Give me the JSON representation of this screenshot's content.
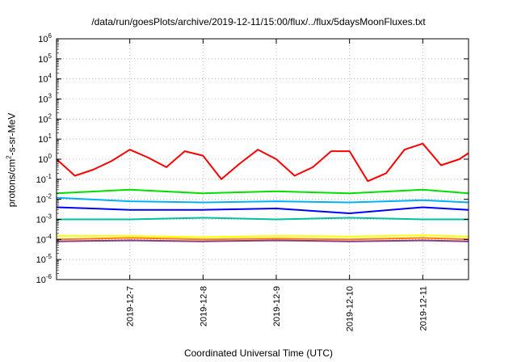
{
  "title": "/data/run/goesPlots/archive/2019-12-11/15:00/flux/../flux/5daysMoonFluxes.txt",
  "xlabel": "Coordinated Universal Time (UTC)",
  "ylabel": {
    "prefix": "protons/cm",
    "sup": "2",
    "suffix": "-s-sr-MeV"
  },
  "chart_data": {
    "type": "line",
    "title": "/data/run/goesPlots/archive/2019-12-11/15:00/flux/../flux/5daysMoonFluxes.txt",
    "xlabel": "Coordinated Universal Time (UTC)",
    "ylabel": "protons/cm2-s-sr-MeV",
    "yscale": "log",
    "ylim": [
      1e-06,
      1000000.0
    ],
    "xlim": [
      "2019-12-06T00:00",
      "2019-12-11T15:00"
    ],
    "grid": true,
    "x_ticks": [
      "2019-12-7",
      "2019-12-8",
      "2019-12-9",
      "2019-12-10",
      "2019-12-11"
    ],
    "y_tick_exponents": [
      -6,
      -5,
      -4,
      -3,
      -2,
      -1,
      0,
      1,
      2,
      3,
      4,
      5,
      6
    ],
    "series": [
      {
        "color": "#ff0000",
        "x": [
          "2019-12-06T00:00",
          "2019-12-06T06:00",
          "2019-12-06T12:00",
          "2019-12-06T18:00",
          "2019-12-07T00:00",
          "2019-12-07T06:00",
          "2019-12-07T12:00",
          "2019-12-07T18:00",
          "2019-12-08T00:00",
          "2019-12-08T06:00",
          "2019-12-08T12:00",
          "2019-12-08T18:00",
          "2019-12-09T00:00",
          "2019-12-09T06:00",
          "2019-12-09T12:00",
          "2019-12-09T18:00",
          "2019-12-10T00:00",
          "2019-12-10T06:00",
          "2019-12-10T12:00",
          "2019-12-10T18:00",
          "2019-12-11T00:00",
          "2019-12-11T06:00",
          "2019-12-11T12:00",
          "2019-12-11T15:00"
        ],
        "y": [
          1.0,
          0.15,
          0.3,
          0.8,
          3.0,
          1.2,
          0.4,
          2.5,
          1.5,
          0.1,
          0.6,
          3.0,
          1.0,
          0.15,
          0.4,
          2.5,
          2.5,
          0.08,
          0.2,
          3.0,
          6.0,
          0.5,
          1.0,
          2.0
        ]
      },
      {
        "color": "#00e000",
        "x": [
          "2019-12-06T00:00",
          "2019-12-07T00:00",
          "2019-12-08T00:00",
          "2019-12-09T00:00",
          "2019-12-10T00:00",
          "2019-12-11T00:00",
          "2019-12-11T15:00"
        ],
        "y": [
          0.02,
          0.03,
          0.02,
          0.025,
          0.02,
          0.03,
          0.02
        ]
      },
      {
        "color": "#00b0ff",
        "x": [
          "2019-12-06T00:00",
          "2019-12-07T00:00",
          "2019-12-08T00:00",
          "2019-12-09T00:00",
          "2019-12-10T00:00",
          "2019-12-11T00:00",
          "2019-12-11T15:00"
        ],
        "y": [
          0.012,
          0.008,
          0.007,
          0.008,
          0.007,
          0.009,
          0.007
        ]
      },
      {
        "color": "#0000ff",
        "x": [
          "2019-12-06T00:00",
          "2019-12-07T00:00",
          "2019-12-08T00:00",
          "2019-12-09T00:00",
          "2019-12-10T00:00",
          "2019-12-11T00:00",
          "2019-12-11T15:00"
        ],
        "y": [
          0.004,
          0.003,
          0.003,
          0.0035,
          0.002,
          0.004,
          0.003
        ]
      },
      {
        "color": "#00c0a0",
        "x": [
          "2019-12-06T00:00",
          "2019-12-07T00:00",
          "2019-12-08T00:00",
          "2019-12-09T00:00",
          "2019-12-10T00:00",
          "2019-12-11T00:00",
          "2019-12-11T15:00"
        ],
        "y": [
          0.001,
          0.001,
          0.0012,
          0.001,
          0.0012,
          0.001,
          0.001
        ]
      },
      {
        "color": "#ffff00",
        "x": [
          "2019-12-06T00:00",
          "2019-12-07T00:00",
          "2019-12-08T00:00",
          "2019-12-09T00:00",
          "2019-12-10T00:00",
          "2019-12-11T00:00",
          "2019-12-11T15:00"
        ],
        "y": [
          0.00015,
          0.00015,
          0.00013,
          0.00015,
          0.00014,
          0.00016,
          0.00014
        ]
      },
      {
        "color": "#ff8000",
        "x": [
          "2019-12-06T00:00",
          "2019-12-07T00:00",
          "2019-12-08T00:00",
          "2019-12-09T00:00",
          "2019-12-10T00:00",
          "2019-12-11T00:00",
          "2019-12-11T15:00"
        ],
        "y": [
          0.0001,
          0.00012,
          0.0001,
          0.00011,
          0.0001,
          0.00012,
          0.0001
        ]
      },
      {
        "color": "#8b3a8b",
        "x": [
          "2019-12-06T00:00",
          "2019-12-07T00:00",
          "2019-12-08T00:00",
          "2019-12-09T00:00",
          "2019-12-10T00:00",
          "2019-12-11T00:00",
          "2019-12-11T15:00"
        ],
        "y": [
          8e-05,
          9e-05,
          8e-05,
          9e-05,
          8e-05,
          9e-05,
          8e-05
        ]
      }
    ]
  }
}
